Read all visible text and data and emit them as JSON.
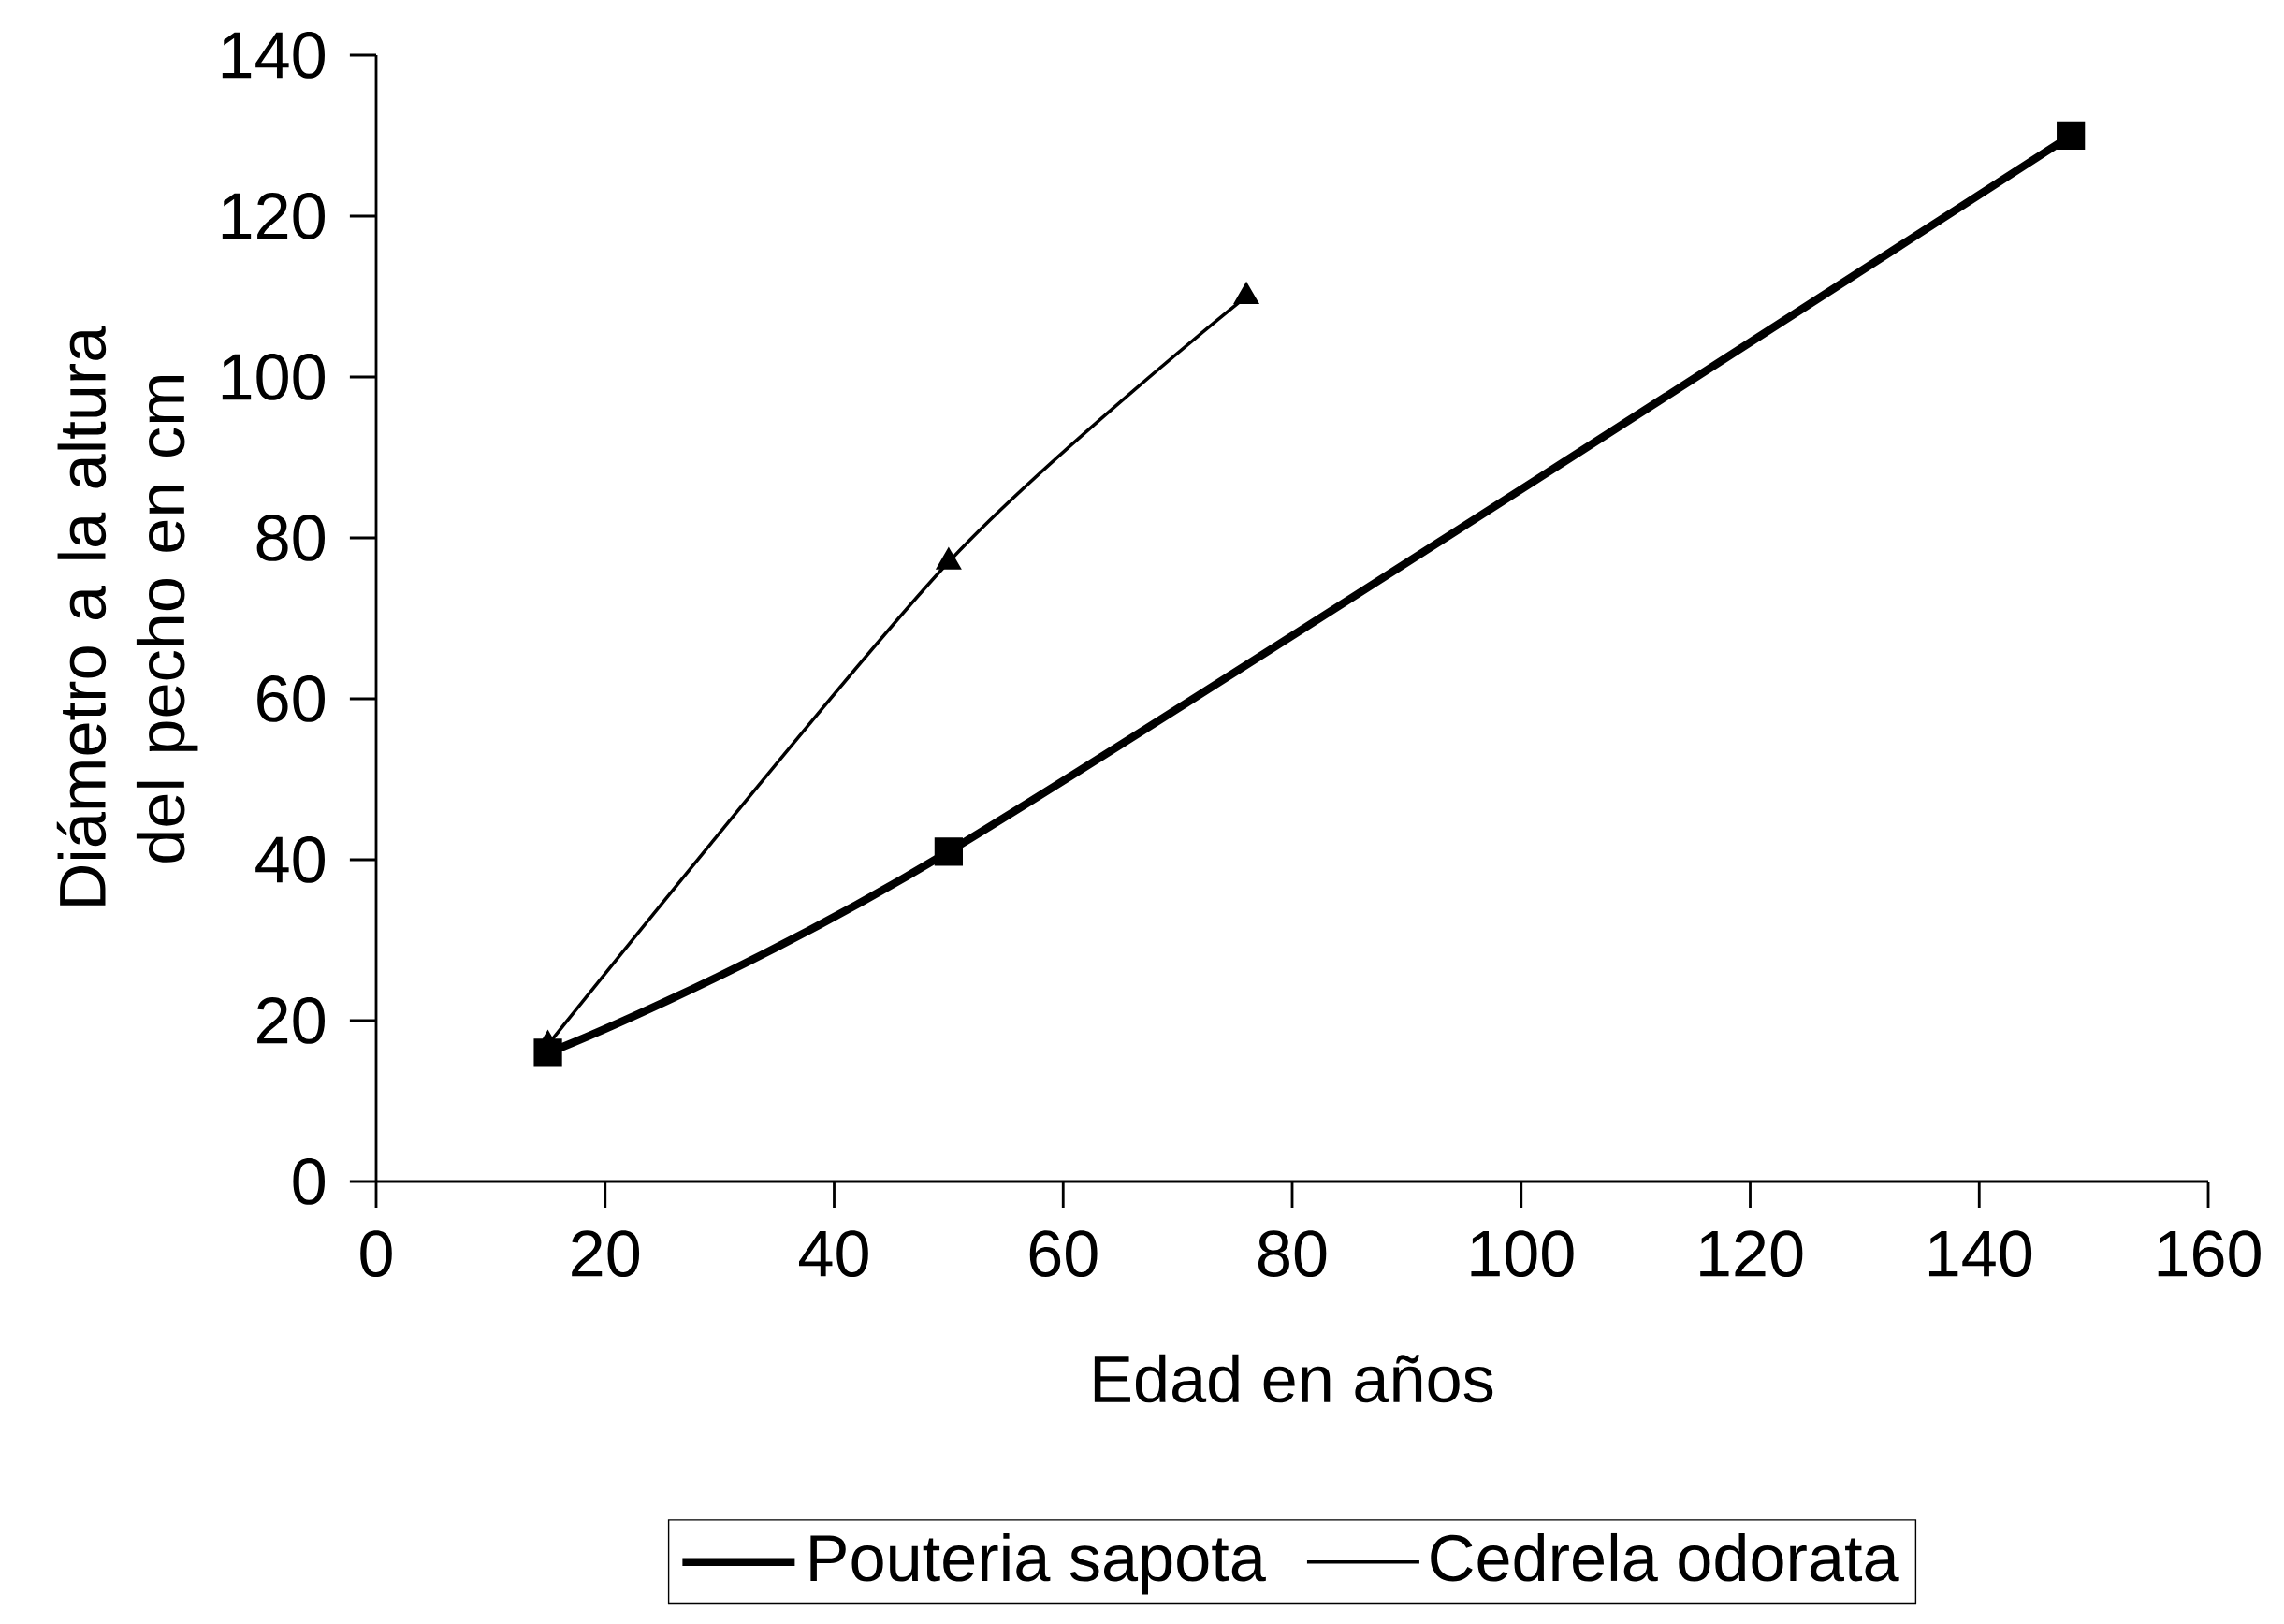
{
  "chart_data": {
    "type": "line",
    "xlabel": "Edad en años",
    "ylabel": "Diámetro a la altura del pecho en cm",
    "xlim": [
      0,
      160
    ],
    "xticks": [
      0,
      20,
      40,
      60,
      80,
      100,
      120,
      140,
      160
    ],
    "ylim": [
      0,
      140
    ],
    "yticks": [
      0,
      20,
      40,
      60,
      80,
      100,
      120,
      140
    ],
    "legend": "bottom",
    "series": [
      {
        "name": "Pouteria sapota",
        "color": "#000000",
        "marker": "square",
        "x": [
          15,
          50,
          148
        ],
        "values": [
          16,
          41,
          130
        ]
      },
      {
        "name": "Cedrela odorata",
        "color": "#000000",
        "marker": "triangle",
        "x": [
          15,
          50,
          76
        ],
        "values": [
          17,
          77,
          110
        ]
      }
    ]
  }
}
